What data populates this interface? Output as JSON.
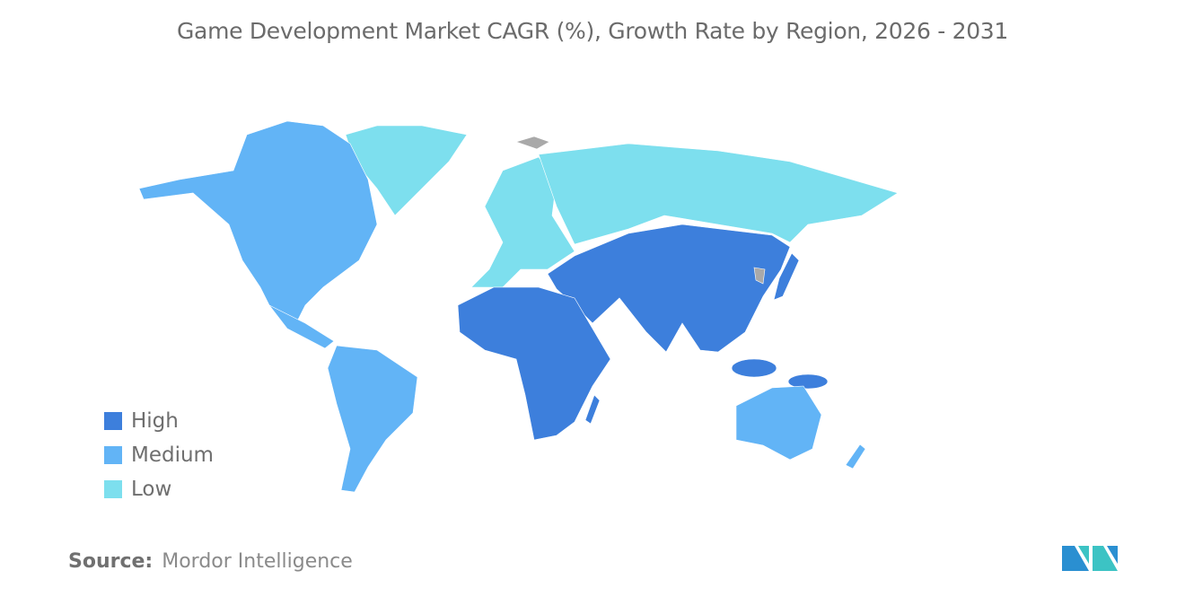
{
  "title": "Game Development Market CAGR (%), Growth Rate by Region, 2026 - 2031",
  "legend": [
    {
      "label": "High",
      "color": "#3d7fdc"
    },
    {
      "label": "Medium",
      "color": "#62b4f6"
    },
    {
      "label": "Low",
      "color": "#7ddfee"
    }
  ],
  "no_data_color": "#a9a9a9",
  "regions": {
    "north_america": "Medium",
    "south_america": "Medium",
    "europe": "Low",
    "russia": "Low",
    "greenland": "Low",
    "asia": "High",
    "middle_east_africa": "High",
    "australia_nz": "Medium"
  },
  "source": {
    "label": "Source:",
    "value": "Mordor Intelligence"
  },
  "logo": {
    "text": "Mordor Intelligence",
    "colors": [
      "#2a8fd1",
      "#3cc3c4"
    ]
  }
}
